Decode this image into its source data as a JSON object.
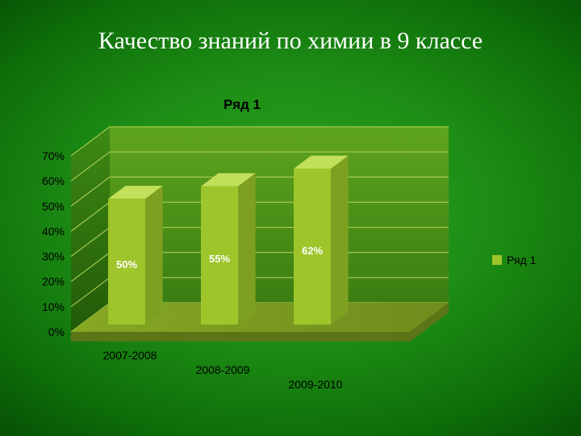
{
  "slide": {
    "title": "Качество знаний по химии в 9 классе",
    "title_color": "#ffffff",
    "title_fontsize": 30,
    "title_fontfamily": "Times New Roman"
  },
  "chart": {
    "type": "bar-3d",
    "series_title": "Ряд 1",
    "series_title_color": "#000000",
    "series_title_fontsize": 17,
    "categories": [
      "2007-2008",
      "2008-2009",
      "2009-2010"
    ],
    "values": [
      50,
      55,
      62
    ],
    "value_labels": [
      "50%",
      "55%",
      "62%"
    ],
    "value_label_color": "#ffffff",
    "value_label_fontsize": 13,
    "bar_front_color": "#9ec52a",
    "bar_side_color": "#7ea020",
    "bar_top_color": "#c3e05a",
    "floor_top_color": "#86a823",
    "floor_top_color_dark": "#6f8c1d",
    "floor_side_color": "#5c7517",
    "wall_back_color_top": "#5fa41e",
    "wall_back_color_bottom": "#3a7e12",
    "wall_side_color_top": "#3e8a14",
    "wall_side_color_bottom": "#225a08",
    "grid_color": "#b8d65a",
    "axis_label_color": "#000000",
    "axis_label_fontsize": 14,
    "ylim": [
      0,
      70
    ],
    "ytick_step": 10,
    "ytick_labels": [
      "0%",
      "10%",
      "20%",
      "30%",
      "40%",
      "50%",
      "60%",
      "70%"
    ],
    "legend": {
      "swatch_color": "#9ec52a",
      "label": "Ряд 1",
      "label_color": "#000000",
      "label_fontsize": 14
    }
  }
}
